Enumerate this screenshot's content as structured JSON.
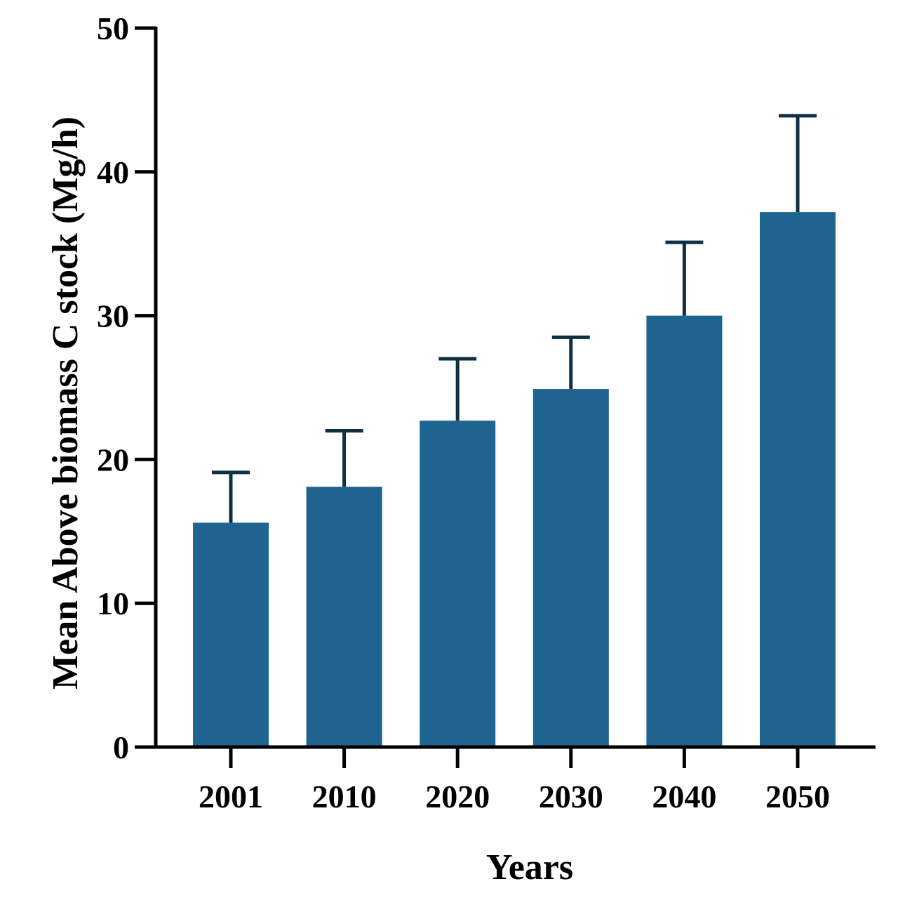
{
  "chart_data": {
    "type": "bar",
    "title": "",
    "xlabel": "Years",
    "ylabel": "Mean Above biomass C stock (Mg/h)",
    "categories": [
      "2001",
      "2010",
      "2020",
      "2030",
      "2040",
      "2050"
    ],
    "series": [
      {
        "values": [
          15.6,
          18.1,
          22.7,
          24.9,
          30.0,
          37.2
        ],
        "error_upper": [
          3.5,
          3.9,
          4.3,
          3.6,
          5.1,
          6.7
        ]
      }
    ],
    "ylim": [
      0,
      50
    ],
    "yticks": [
      0,
      10,
      20,
      30,
      40,
      50
    ],
    "grid": false,
    "legend": "none",
    "colors": {
      "bar": "#1f6491",
      "error_bar": "#0f2f42",
      "axis": "#000000"
    }
  }
}
